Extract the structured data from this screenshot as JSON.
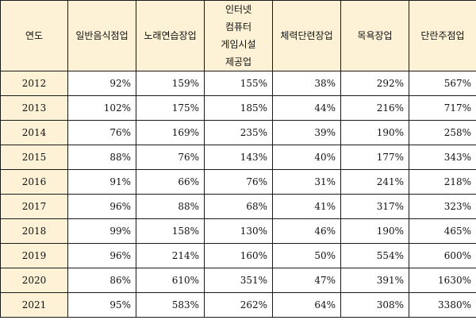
{
  "table": {
    "headers": {
      "year": "연도",
      "restaurant": "일반음식점업",
      "karaoke": "노래연습장업",
      "pc_bang": [
        "인터넷",
        "컴퓨터",
        "게임시설",
        "제공업"
      ],
      "gym": "체력단련장업",
      "bath": "목욕장업",
      "bar": "단란주점업"
    },
    "rows": [
      {
        "year": "2012",
        "values": [
          "92%",
          "159%",
          "155%",
          "38%",
          "292%",
          "567%"
        ]
      },
      {
        "year": "2013",
        "values": [
          "102%",
          "175%",
          "185%",
          "44%",
          "216%",
          "717%"
        ]
      },
      {
        "year": "2014",
        "values": [
          "76%",
          "169%",
          "235%",
          "39%",
          "190%",
          "258%"
        ]
      },
      {
        "year": "2015",
        "values": [
          "88%",
          "76%",
          "143%",
          "40%",
          "177%",
          "343%"
        ]
      },
      {
        "year": "2016",
        "values": [
          "91%",
          "66%",
          "76%",
          "31%",
          "241%",
          "218%"
        ]
      },
      {
        "year": "2017",
        "values": [
          "96%",
          "88%",
          "68%",
          "41%",
          "317%",
          "323%"
        ]
      },
      {
        "year": "2018",
        "values": [
          "99%",
          "158%",
          "130%",
          "46%",
          "190%",
          "465%"
        ]
      },
      {
        "year": "2019",
        "values": [
          "96%",
          "214%",
          "160%",
          "50%",
          "554%",
          "600%"
        ]
      },
      {
        "year": "2020",
        "values": [
          "86%",
          "610%",
          "351%",
          "47%",
          "391%",
          "1630%"
        ]
      },
      {
        "year": "2021",
        "values": [
          "95%",
          "583%",
          "262%",
          "64%",
          "308%",
          "3380%"
        ]
      }
    ]
  }
}
